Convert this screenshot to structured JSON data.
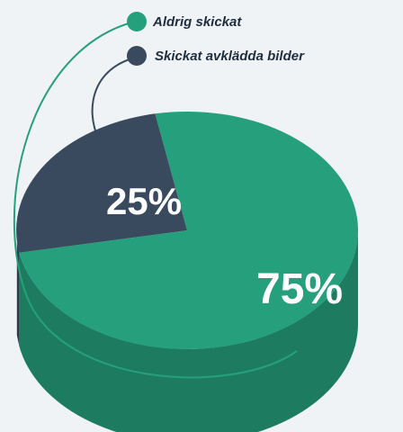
{
  "chart_data": {
    "type": "pie",
    "categories": [
      "Aldrig skickat",
      "Skickat avklädda bilder"
    ],
    "values": [
      75,
      25
    ],
    "labels": [
      "75%",
      "25%"
    ],
    "colors": [
      "#26a07c",
      "#3a4a5e"
    ],
    "legend_placement": "top"
  }
}
